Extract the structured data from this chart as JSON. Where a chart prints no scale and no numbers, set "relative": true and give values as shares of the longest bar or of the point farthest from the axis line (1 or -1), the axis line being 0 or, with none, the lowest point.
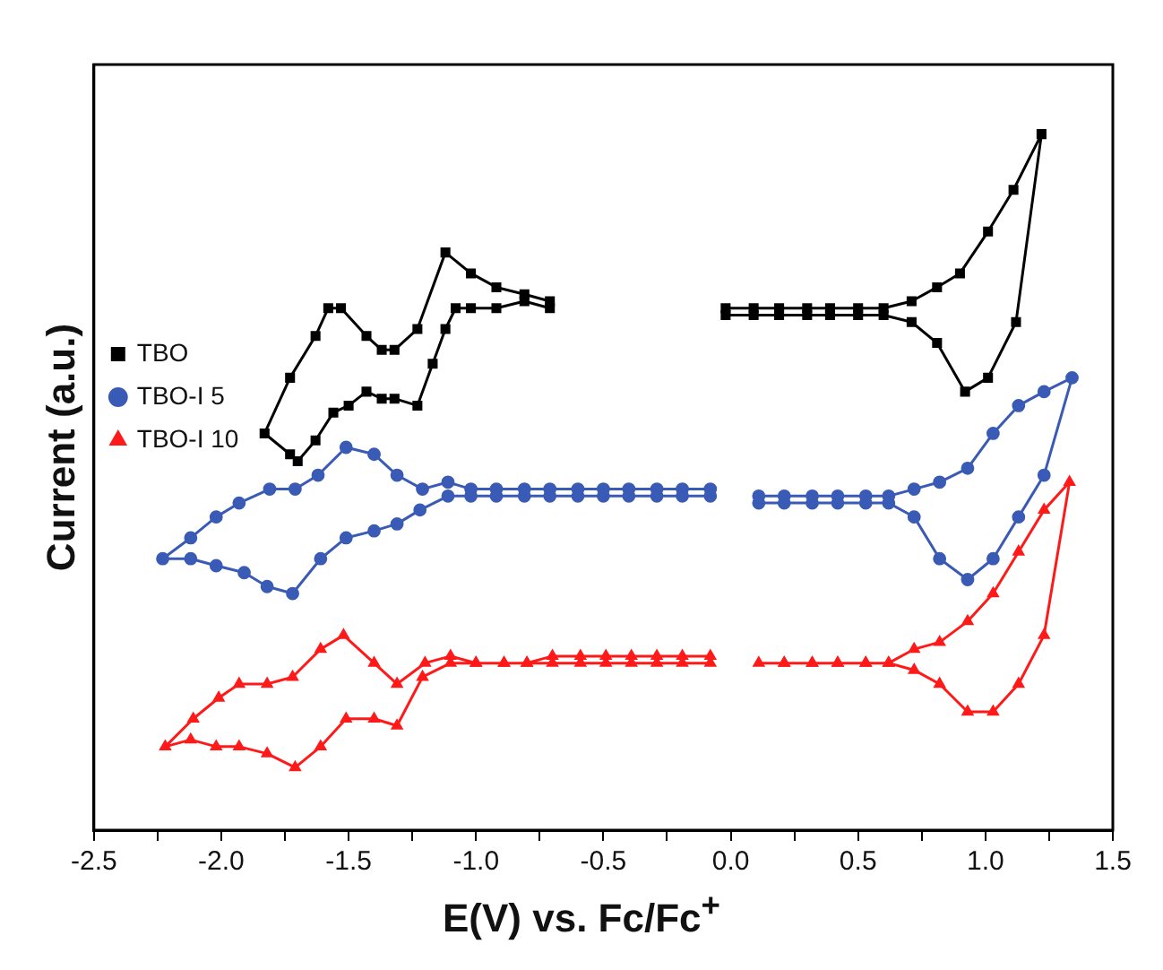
{
  "chart_data": {
    "type": "line",
    "xlabel": "E(V) vs. Fc/Fc$^{+}$",
    "ylabel": "Current (a.u.)",
    "relative": true,
    "xlim": [
      -2.5,
      1.5
    ],
    "xticks": [
      {
        "value": -2.5,
        "label": "-2.5"
      },
      {
        "value": -2.25,
        "label": null
      },
      {
        "value": -2,
        "label": "-2.0"
      },
      {
        "value": -1.75,
        "label": null
      },
      {
        "value": -1.5,
        "label": "-1.5"
      },
      {
        "value": -1.25,
        "label": null
      },
      {
        "value": -1,
        "label": "-1.0"
      },
      {
        "value": -0.75,
        "label": null
      },
      {
        "value": -0.5,
        "label": "-0.5"
      },
      {
        "value": -0.25,
        "label": null
      },
      {
        "value": 0,
        "label": "0.0"
      },
      {
        "value": 0.25,
        "label": null
      },
      {
        "value": 0.5,
        "label": "0.5"
      },
      {
        "value": 0.75,
        "label": null
      },
      {
        "value": 1,
        "label": "1.0"
      },
      {
        "value": 1.25,
        "label": null
      },
      {
        "value": 1.5,
        "label": "1.5"
      }
    ],
    "grid": false,
    "legend": "top",
    "series": [
      {
        "name": "TBO",
        "color": "#000000",
        "marker": "square",
        "x": [
          -0.71,
          -0.81,
          -0.92,
          -1.02,
          -1.12,
          -1.23,
          -1.32,
          -1.37,
          -1.43,
          -1.53,
          -1.58,
          -1.63,
          -1.73,
          -1.83,
          -1.73,
          -1.7,
          -1.63,
          -1.56,
          -1.5,
          -1.43,
          -1.37,
          -1.32,
          -1.23,
          -1.17,
          -1.12,
          -1.08,
          -1.02,
          -0.92,
          -0.81,
          -0.71,
          null,
          -0.02,
          0.09,
          0.19,
          0.3,
          0.39,
          0.5,
          0.6,
          0.71,
          0.81,
          0.9,
          1.01,
          1.11,
          1.22,
          1.12,
          1.01,
          0.92,
          0.81,
          0.71,
          0.6,
          0.5,
          0.39,
          0.3,
          0.19,
          0.09,
          -0.02
        ],
        "values": [
          0.76,
          0.77,
          0.78,
          0.8,
          0.83,
          0.72,
          0.69,
          0.69,
          0.71,
          0.75,
          0.75,
          0.71,
          0.65,
          0.57,
          0.54,
          0.53,
          0.56,
          0.6,
          0.61,
          0.63,
          0.62,
          0.62,
          0.61,
          0.67,
          0.72,
          0.75,
          0.75,
          0.75,
          0.76,
          0.75,
          null,
          0.75,
          0.75,
          0.75,
          0.75,
          0.75,
          0.75,
          0.75,
          0.76,
          0.78,
          0.8,
          0.86,
          0.92,
          1.0,
          0.73,
          0.65,
          0.63,
          0.7,
          0.73,
          0.74,
          0.74,
          0.74,
          0.74,
          0.74,
          0.74,
          0.74
        ]
      },
      {
        "name": "TBO-I 5",
        "color": "#3a5bb5",
        "marker": "circle",
        "x": [
          -0.08,
          -0.19,
          -0.29,
          -0.4,
          -0.5,
          -0.6,
          -0.71,
          -0.81,
          -0.92,
          -1.02,
          -1.11,
          -1.21,
          -1.31,
          -1.4,
          -1.51,
          -1.62,
          -1.71,
          -1.81,
          -1.93,
          -2.02,
          -2.12,
          -2.23,
          -2.12,
          -2.02,
          -1.91,
          -1.82,
          -1.72,
          -1.61,
          -1.51,
          -1.4,
          -1.31,
          -1.22,
          -1.11,
          -1.02,
          -0.92,
          -0.81,
          -0.71,
          -0.6,
          -0.5,
          -0.4,
          -0.29,
          -0.19,
          -0.08,
          null,
          0.11,
          0.21,
          0.32,
          0.42,
          0.53,
          0.62,
          0.72,
          0.82,
          0.93,
          1.03,
          1.13,
          1.23,
          1.34,
          1.23,
          1.13,
          1.03,
          0.93,
          0.82,
          0.72,
          0.62,
          0.53,
          0.42,
          0.32,
          0.21,
          0.11
        ],
        "values": [
          0.49,
          0.49,
          0.49,
          0.49,
          0.49,
          0.49,
          0.49,
          0.49,
          0.49,
          0.49,
          0.5,
          0.49,
          0.51,
          0.54,
          0.55,
          0.51,
          0.49,
          0.49,
          0.47,
          0.45,
          0.42,
          0.39,
          0.39,
          0.38,
          0.37,
          0.35,
          0.34,
          0.39,
          0.42,
          0.43,
          0.44,
          0.46,
          0.48,
          0.48,
          0.48,
          0.48,
          0.48,
          0.48,
          0.48,
          0.48,
          0.48,
          0.48,
          0.48,
          null,
          0.48,
          0.48,
          0.48,
          0.48,
          0.48,
          0.48,
          0.49,
          0.5,
          0.52,
          0.57,
          0.61,
          0.63,
          0.65,
          0.51,
          0.45,
          0.39,
          0.36,
          0.39,
          0.45,
          0.47,
          0.47,
          0.47,
          0.47,
          0.47,
          0.47
        ]
      },
      {
        "name": "TBO-I 10",
        "color": "#ff1a1a",
        "marker": "triangle",
        "x": [
          -0.08,
          -0.19,
          -0.29,
          -0.39,
          -0.49,
          -0.59,
          -0.7,
          -0.8,
          -0.89,
          -1.0,
          -1.1,
          -1.2,
          -1.31,
          -1.4,
          -1.52,
          -1.61,
          -1.72,
          -1.82,
          -1.93,
          -2.01,
          -2.11,
          -2.22,
          -2.12,
          -2.02,
          -1.93,
          -1.82,
          -1.71,
          -1.61,
          -1.51,
          -1.4,
          -1.31,
          -1.21,
          -1.1,
          -1.0,
          -0.89,
          -0.8,
          -0.7,
          -0.59,
          -0.49,
          -0.39,
          -0.29,
          -0.19,
          -0.08,
          null,
          0.11,
          0.21,
          0.32,
          0.42,
          0.53,
          0.62,
          0.72,
          0.82,
          0.93,
          1.03,
          1.13,
          1.23,
          1.33,
          1.23,
          1.13,
          1.03,
          0.93,
          0.82,
          0.72,
          0.62,
          0.53,
          0.42,
          0.32,
          0.21
        ],
        "values": [
          0.25,
          0.25,
          0.25,
          0.25,
          0.25,
          0.25,
          0.25,
          0.24,
          0.24,
          0.24,
          0.25,
          0.24,
          0.21,
          0.24,
          0.28,
          0.26,
          0.22,
          0.21,
          0.21,
          0.19,
          0.16,
          0.12,
          0.13,
          0.12,
          0.12,
          0.11,
          0.09,
          0.12,
          0.16,
          0.16,
          0.15,
          0.22,
          0.24,
          0.24,
          0.24,
          0.24,
          0.24,
          0.24,
          0.24,
          0.24,
          0.24,
          0.24,
          0.24,
          null,
          0.24,
          0.24,
          0.24,
          0.24,
          0.24,
          0.24,
          0.26,
          0.27,
          0.3,
          0.34,
          0.4,
          0.46,
          0.5,
          0.28,
          0.21,
          0.17,
          0.17,
          0.21,
          0.23,
          0.24,
          0.24,
          0.24,
          0.24,
          0.24
        ]
      }
    ]
  }
}
